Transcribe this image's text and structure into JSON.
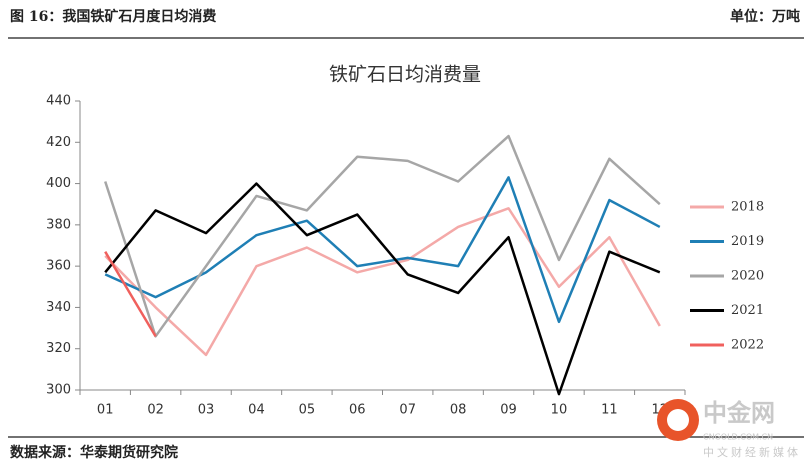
{
  "header": {
    "title": "图 16：我国铁矿石月度日均消费",
    "unit": "单位：万吨"
  },
  "chart_data": {
    "type": "line",
    "title": "铁矿石日均消费量",
    "categories": [
      "01",
      "02",
      "03",
      "04",
      "05",
      "06",
      "07",
      "08",
      "09",
      "10",
      "11",
      "12"
    ],
    "series": [
      {
        "name": "2018",
        "color": "#f4a9a8",
        "values": [
          365,
          340,
          317,
          360,
          369,
          357,
          363,
          379,
          388,
          350,
          374,
          331
        ]
      },
      {
        "name": "2019",
        "color": "#1f7fb5",
        "values": [
          356,
          345,
          357,
          375,
          382,
          360,
          364,
          360,
          403,
          333,
          392,
          379
        ]
      },
      {
        "name": "2020",
        "color": "#a6a6a6",
        "values": [
          401,
          326,
          360,
          394,
          387,
          413,
          411,
          401,
          423,
          363,
          412,
          390
        ]
      },
      {
        "name": "2021",
        "color": "#000000",
        "values": [
          357,
          387,
          376,
          400,
          375,
          385,
          356,
          347,
          374,
          298,
          367,
          357
        ]
      },
      {
        "name": "2022",
        "color": "#f0605d",
        "values": [
          367,
          326,
          null,
          null,
          null,
          null,
          null,
          null,
          null,
          null,
          null,
          null
        ]
      }
    ],
    "ylim": [
      300,
      440
    ],
    "yticks": [
      300,
      320,
      340,
      360,
      380,
      400,
      420,
      440
    ],
    "legend": "right"
  },
  "footer": {
    "source": "数据来源：华泰期货研究院"
  },
  "watermark": {
    "name": "中金网",
    "url": "CNGOLD.COM.CN",
    "tagline": "中文财经新媒体"
  }
}
